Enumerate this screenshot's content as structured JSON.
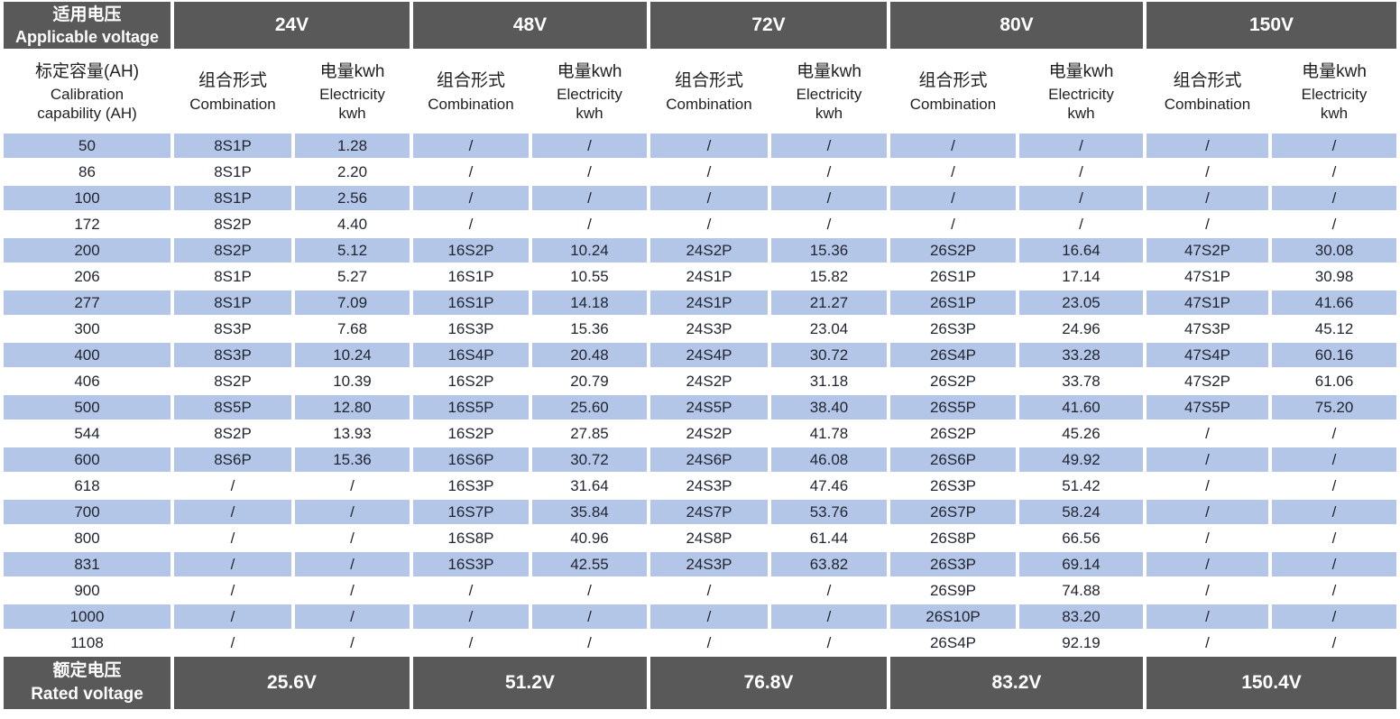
{
  "colors": {
    "header_bg": "#595959",
    "header_text": "#ffffff",
    "band_row_bg": "#b4c6e7",
    "plain_row_bg": "#ffffff",
    "data_text": "#1f2430"
  },
  "table": {
    "corner": {
      "line1": "适用电压",
      "line2": "Applicable voltage"
    },
    "capacity_header": {
      "line1": "标定容量(AH)",
      "line2": "Calibration",
      "line3": "capability (AH)"
    },
    "subheader": {
      "combination_zh": "组合形式",
      "combination_en": "Combination",
      "electricity_zh": "电量kwh",
      "electricity_en1": "Electricity",
      "electricity_en2": "kwh"
    },
    "voltages": [
      "24V",
      "48V",
      "72V",
      "80V",
      "150V"
    ],
    "footer": {
      "line1": "额定电压",
      "line2": "Rated voltage"
    },
    "rated_voltages": [
      "25.6V",
      "51.2V",
      "76.8V",
      "83.2V",
      "150.4V"
    ],
    "rows": [
      {
        "capacity": "50",
        "values": [
          "8S1P",
          "1.28",
          "/",
          "/",
          "/",
          "/",
          "/",
          "/",
          "/",
          "/"
        ]
      },
      {
        "capacity": "86",
        "values": [
          "8S1P",
          "2.20",
          "/",
          "/",
          "/",
          "/",
          "/",
          "/",
          "/",
          "/"
        ]
      },
      {
        "capacity": "100",
        "values": [
          "8S1P",
          "2.56",
          "/",
          "/",
          "/",
          "/",
          "/",
          "/",
          "/",
          "/"
        ]
      },
      {
        "capacity": "172",
        "values": [
          "8S2P",
          "4.40",
          "/",
          "/",
          "/",
          "/",
          "/",
          "/",
          "/",
          "/"
        ]
      },
      {
        "capacity": "200",
        "values": [
          "8S2P",
          "5.12",
          "16S2P",
          "10.24",
          "24S2P",
          "15.36",
          "26S2P",
          "16.64",
          "47S2P",
          "30.08"
        ]
      },
      {
        "capacity": "206",
        "values": [
          "8S1P",
          "5.27",
          "16S1P",
          "10.55",
          "24S1P",
          "15.82",
          "26S1P",
          "17.14",
          "47S1P",
          "30.98"
        ]
      },
      {
        "capacity": "277",
        "values": [
          "8S1P",
          "7.09",
          "16S1P",
          "14.18",
          "24S1P",
          "21.27",
          "26S1P",
          "23.05",
          "47S1P",
          "41.66"
        ]
      },
      {
        "capacity": "300",
        "values": [
          "8S3P",
          "7.68",
          "16S3P",
          "15.36",
          "24S3P",
          "23.04",
          "26S3P",
          "24.96",
          "47S3P",
          "45.12"
        ]
      },
      {
        "capacity": "400",
        "values": [
          "8S3P",
          "10.24",
          "16S4P",
          "20.48",
          "24S4P",
          "30.72",
          "26S4P",
          "33.28",
          "47S4P",
          "60.16"
        ]
      },
      {
        "capacity": "406",
        "values": [
          "8S2P",
          "10.39",
          "16S2P",
          "20.79",
          "24S2P",
          "31.18",
          "26S2P",
          "33.78",
          "47S2P",
          "61.06"
        ]
      },
      {
        "capacity": "500",
        "values": [
          "8S5P",
          "12.80",
          "16S5P",
          "25.60",
          "24S5P",
          "38.40",
          "26S5P",
          "41.60",
          "47S5P",
          "75.20"
        ]
      },
      {
        "capacity": "544",
        "values": [
          "8S2P",
          "13.93",
          "16S2P",
          "27.85",
          "24S2P",
          "41.78",
          "26S2P",
          "45.26",
          "/",
          "/"
        ]
      },
      {
        "capacity": "600",
        "values": [
          "8S6P",
          "15.36",
          "16S6P",
          "30.72",
          "24S6P",
          "46.08",
          "26S6P",
          "49.92",
          "/",
          "/"
        ]
      },
      {
        "capacity": "618",
        "values": [
          "/",
          "/",
          "16S3P",
          "31.64",
          "24S3P",
          "47.46",
          "26S3P",
          "51.42",
          "/",
          "/"
        ]
      },
      {
        "capacity": "700",
        "values": [
          "/",
          "/",
          "16S7P",
          "35.84",
          "24S7P",
          "53.76",
          "26S7P",
          "58.24",
          "/",
          "/"
        ]
      },
      {
        "capacity": "800",
        "values": [
          "/",
          "/",
          "16S8P",
          "40.96",
          "24S8P",
          "61.44",
          "26S8P",
          "66.56",
          "/",
          "/"
        ]
      },
      {
        "capacity": "831",
        "values": [
          "/",
          "/",
          "16S3P",
          "42.55",
          "24S3P",
          "63.82",
          "26S3P",
          "69.14",
          "/",
          "/"
        ]
      },
      {
        "capacity": "900",
        "values": [
          "/",
          "/",
          "/",
          "/",
          "/",
          "/",
          "26S9P",
          "74.88",
          "/",
          "/"
        ]
      },
      {
        "capacity": "1000",
        "values": [
          "/",
          "/",
          "/",
          "/",
          "/",
          "/",
          "26S10P",
          "83.20",
          "/",
          "/"
        ]
      },
      {
        "capacity": "1108",
        "values": [
          "/",
          "/",
          "/",
          "/",
          "/",
          "/",
          "26S4P",
          "92.19",
          "/",
          "/"
        ]
      }
    ]
  }
}
